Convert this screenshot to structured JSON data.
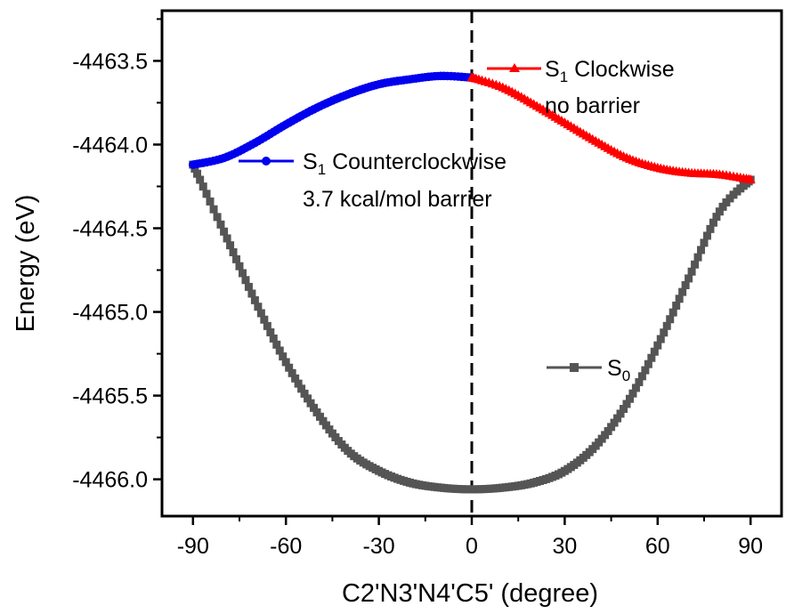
{
  "chart_data": {
    "type": "line",
    "xlabel": "C2'N3'N4'C5' (degree)",
    "ylabel": "Energy (eV)",
    "xlim": [
      -100,
      100
    ],
    "ylim": [
      -4466.22,
      -4463.2
    ],
    "x_ticks": [
      -90,
      -60,
      -30,
      0,
      30,
      60,
      90
    ],
    "x_tick_labels": [
      "-90",
      "-60",
      "-30",
      "0",
      "30",
      "60",
      "90"
    ],
    "y_ticks": [
      -4463.5,
      -4464.0,
      -4464.5,
      -4465.0,
      -4465.5,
      -4466.0
    ],
    "y_tick_labels": [
      "-4463.5",
      "-4464.0",
      "-4464.5",
      "-4465.0",
      "-4465.5",
      "-4466.0"
    ],
    "vline_x": 0,
    "grid": false,
    "colors": {
      "s0": "#555555",
      "ccw": "#0000ee",
      "cw": "#ff0000",
      "axis": "#000000"
    },
    "series": [
      {
        "name": "S0",
        "marker": "square",
        "color": "#555555",
        "x": [
          -90,
          -80,
          -70,
          -60,
          -50,
          -40,
          -30,
          -20,
          -10,
          0,
          10,
          20,
          30,
          40,
          50,
          60,
          70,
          80,
          90
        ],
        "y": [
          -4464.12,
          -4464.52,
          -4464.93,
          -4465.3,
          -4465.6,
          -4465.83,
          -4465.95,
          -4466.02,
          -4466.05,
          -4466.06,
          -4466.05,
          -4466.02,
          -4465.95,
          -4465.8,
          -4465.55,
          -4465.2,
          -4464.8,
          -4464.4,
          -4464.21
        ]
      },
      {
        "name": "S1 Counterclockwise",
        "marker": "circle",
        "color": "#0000ee",
        "x": [
          -90,
          -80,
          -70,
          -60,
          -50,
          -40,
          -30,
          -20,
          -10,
          0
        ],
        "y": [
          -4464.12,
          -4464.08,
          -4463.99,
          -4463.88,
          -4463.78,
          -4463.7,
          -4463.64,
          -4463.61,
          -4463.59,
          -4463.6
        ]
      },
      {
        "name": "S1 Clockwise",
        "marker": "triangle",
        "color": "#ff0000",
        "x": [
          0,
          10,
          20,
          30,
          40,
          50,
          60,
          70,
          80,
          90
        ],
        "y": [
          -4463.6,
          -4463.66,
          -4463.76,
          -4463.87,
          -4463.98,
          -4464.08,
          -4464.14,
          -4464.17,
          -4464.18,
          -4464.21
        ]
      }
    ],
    "legend": {
      "ccw": {
        "label": "S",
        "sub": "1",
        "rest": " Counterclockwise",
        "note": "3.7 kcal/mol barrier"
      },
      "cw": {
        "label": "S",
        "sub": "1",
        "rest": " Clockwise",
        "note": "no barrier"
      },
      "s0": {
        "label": "S",
        "sub": "0",
        "rest": ""
      }
    }
  }
}
